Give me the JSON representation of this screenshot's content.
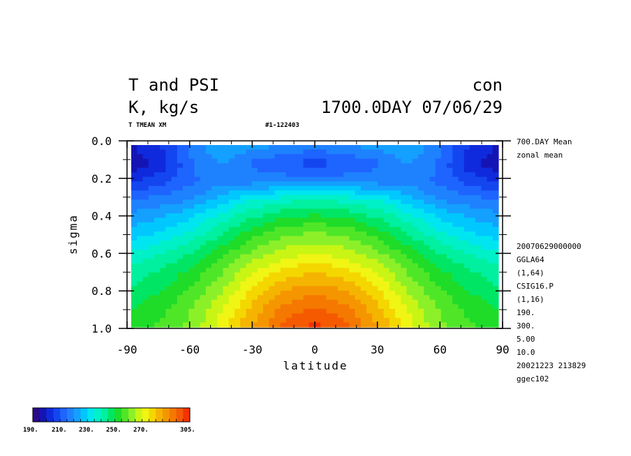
{
  "header": {
    "title_left": "T and PSI",
    "title_right": "con",
    "units": "K, kg/s",
    "time_info": "1700.0DAY 07/06/29",
    "var_name": "T TMEAN XM",
    "run_id": "#1-122403"
  },
  "side_info": {
    "top": [
      "700.DAY Mean",
      "zonal mean"
    ],
    "bottom": [
      "20070629000000",
      "GGLA64",
      "(1,64)",
      "CSIG16.P",
      "(1,16)",
      "190.",
      "300.",
      "5.00",
      "10.0",
      "20021223 213829",
      "ggec102"
    ]
  },
  "colorbar": {
    "labels": [
      "190.",
      "210.",
      "230.",
      "250.",
      "270.",
      "305."
    ],
    "colors": [
      "#2a0a8a",
      "#1414b4",
      "#0f2adc",
      "#1446f0",
      "#1e64ff",
      "#1e82ff",
      "#14a0ff",
      "#00c8ff",
      "#00e6f0",
      "#00f0c8",
      "#00f0a0",
      "#00e664",
      "#1edc28",
      "#50e628",
      "#8cf028",
      "#c8f514",
      "#f0f514",
      "#f5d700",
      "#f5b400",
      "#f59600",
      "#f57800",
      "#f55a00",
      "#f53200"
    ]
  },
  "chart_data": {
    "type": "heatmap",
    "title": "T and PSI",
    "xlabel": "latitude",
    "ylabel": "sigma",
    "xlim": [
      -90,
      90
    ],
    "ylim": [
      1.0,
      0.0
    ],
    "x_ticks": [
      "-90",
      "-60",
      "-30",
      "0",
      "30",
      "60",
      "90"
    ],
    "y_ticks": [
      "0.0",
      "0.2",
      "0.4",
      "0.6",
      "0.8",
      "1.0"
    ],
    "color_range": [
      190,
      305
    ],
    "grid": false,
    "legend": "bottom-left colorbar",
    "x": [
      -90,
      -75,
      -60,
      -45,
      -30,
      -15,
      0,
      15,
      30,
      45,
      60,
      75,
      90
    ],
    "y": [
      0.0,
      0.1,
      0.2,
      0.3,
      0.4,
      0.5,
      0.6,
      0.7,
      0.8,
      0.9,
      1.0
    ],
    "z": [
      [
        200,
        205,
        218,
        225,
        222,
        220,
        218,
        220,
        222,
        225,
        218,
        205,
        200
      ],
      [
        196,
        202,
        215,
        220,
        214,
        210,
        208,
        210,
        214,
        220,
        215,
        202,
        196
      ],
      [
        205,
        208,
        214,
        218,
        218,
        218,
        218,
        218,
        218,
        218,
        214,
        208,
        205
      ],
      [
        215,
        217,
        220,
        228,
        235,
        238,
        240,
        238,
        235,
        228,
        220,
        217,
        215
      ],
      [
        222,
        225,
        230,
        238,
        245,
        250,
        252,
        250,
        245,
        238,
        230,
        225,
        222
      ],
      [
        228,
        232,
        238,
        246,
        254,
        260,
        262,
        260,
        254,
        246,
        238,
        232,
        228
      ],
      [
        236,
        240,
        246,
        254,
        262,
        268,
        270,
        268,
        262,
        254,
        246,
        240,
        236
      ],
      [
        242,
        246,
        252,
        260,
        270,
        277,
        280,
        277,
        270,
        260,
        252,
        246,
        242
      ],
      [
        246,
        250,
        256,
        265,
        276,
        285,
        288,
        285,
        276,
        265,
        256,
        250,
        246
      ],
      [
        250,
        254,
        260,
        270,
        282,
        292,
        296,
        292,
        282,
        270,
        260,
        254,
        250
      ],
      [
        252,
        256,
        262,
        273,
        286,
        297,
        301,
        297,
        286,
        273,
        262,
        256,
        252
      ]
    ]
  }
}
